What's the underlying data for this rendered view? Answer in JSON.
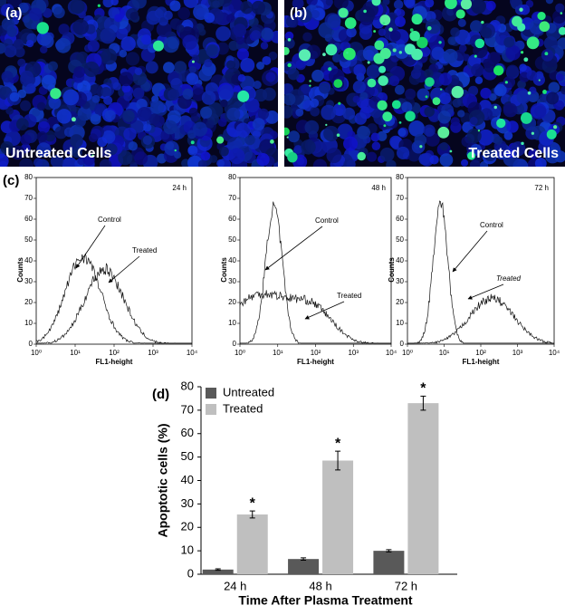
{
  "panels": {
    "a": {
      "label": "(a)",
      "caption": "Untreated Cells"
    },
    "b": {
      "label": "(b)",
      "caption": "Treated Cells"
    },
    "c": {
      "label": "(c)",
      "histograms": [
        {
          "time": "24 h",
          "ylabel": "Counts",
          "xlabel": "FL1-height",
          "control": "Control",
          "treated": "Treated",
          "ylim": [
            0,
            80
          ],
          "yticks": [
            0,
            10,
            20,
            30,
            40,
            50,
            60,
            70,
            80
          ],
          "xlim": [
            1,
            10000
          ],
          "log_x": true,
          "xticks": [
            {
              "value": 1,
              "label": "10⁰"
            },
            {
              "value": 10,
              "label": "10¹"
            },
            {
              "value": 100,
              "label": "10²"
            },
            {
              "value": 1000,
              "label": "10³"
            },
            {
              "value": 10000,
              "label": "10⁴"
            }
          ]
        },
        {
          "time": "48 h",
          "ylabel": "Counts",
          "xlabel": "FL1-height",
          "control": "Control",
          "treated": "Treated",
          "ylim": [
            0,
            80
          ],
          "yticks": [
            0,
            10,
            20,
            30,
            40,
            50,
            60,
            70,
            80
          ],
          "xlim": [
            1,
            10000
          ],
          "log_x": true,
          "xticks": [
            {
              "value": 1,
              "label": "10⁰"
            },
            {
              "value": 10,
              "label": "10¹"
            },
            {
              "value": 100,
              "label": "10²"
            },
            {
              "value": 1000,
              "label": "10³"
            },
            {
              "value": 10000,
              "label": "10⁴"
            }
          ]
        },
        {
          "time": "72 h",
          "ylabel": "Counts",
          "xlabel": "FL1-height",
          "control": "Control",
          "treated": "Treated",
          "ylim": [
            0,
            80
          ],
          "yticks": [
            0,
            10,
            20,
            30,
            40,
            50,
            60,
            70,
            80
          ],
          "xlim": [
            1,
            10000
          ],
          "log_x": true,
          "xticks": [
            {
              "value": 1,
              "label": "10⁰"
            },
            {
              "value": 10,
              "label": "10¹"
            },
            {
              "value": 100,
              "label": "10²"
            },
            {
              "value": 1000,
              "label": "10³"
            },
            {
              "value": 10000,
              "label": "10⁴"
            }
          ]
        }
      ]
    }
  },
  "chart_data": {
    "type": "bar",
    "label": "(d)",
    "y_label": "Apoptotic cells (%)",
    "x_label": "Time After Plasma Treatment",
    "categories": [
      "24 h",
      "48 h",
      "72 h"
    ],
    "series": [
      {
        "name": "Untreated",
        "color": "#595959",
        "values": [
          2,
          6.5,
          10
        ],
        "errors": [
          0.3,
          0.5,
          0.5
        ]
      },
      {
        "name": "Treated",
        "color": "#bfbfbf",
        "values": [
          25.5,
          48.5,
          73
        ],
        "errors": [
          1.5,
          4,
          3
        ]
      }
    ],
    "significance": [
      "*",
      "*",
      "*"
    ],
    "ylim": [
      0,
      80
    ],
    "yticks": [
      0,
      10,
      20,
      30,
      40,
      50,
      60,
      70,
      80
    ],
    "legend": "upper left"
  }
}
